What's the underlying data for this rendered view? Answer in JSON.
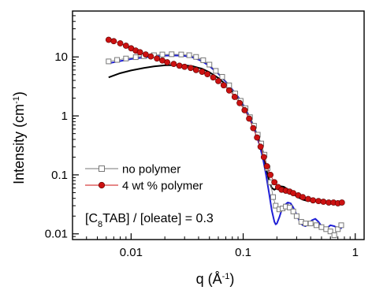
{
  "chart_data": {
    "type": "scatter",
    "x_scale": "log",
    "y_scale": "log",
    "xlim": [
      0.003,
      1.2
    ],
    "ylim": [
      0.008,
      60
    ],
    "x_ticks": [
      {
        "v": 0.01,
        "label": "0.01"
      },
      {
        "v": 0.1,
        "label": "0.1"
      },
      {
        "v": 1,
        "label": "1"
      }
    ],
    "y_ticks": [
      {
        "v": 0.01,
        "label": "0.01"
      },
      {
        "v": 0.1,
        "label": "0.1"
      },
      {
        "v": 1,
        "label": "1"
      },
      {
        "v": 10,
        "label": "10"
      }
    ],
    "xlabel": {
      "main": "q (Å",
      "sup": "-1",
      "end": ")"
    },
    "ylabel": {
      "main": "Intensity (cm",
      "sup": "-1",
      "end": ")"
    },
    "annotation": {
      "pre": "[C",
      "sub": "8",
      "post": "TAB] / [oleate] = 0.3"
    },
    "legend_position": "lower-left",
    "series": [
      {
        "name": "no polymer",
        "color": "#777777",
        "marker": "open-square",
        "points": [
          [
            0.0063,
            8.4
          ],
          [
            0.0075,
            8.9
          ],
          [
            0.009,
            9.4
          ],
          [
            0.011,
            9.9
          ],
          [
            0.013,
            10.3
          ],
          [
            0.016,
            10.7
          ],
          [
            0.019,
            11.0
          ],
          [
            0.023,
            11.1
          ],
          [
            0.028,
            11.0
          ],
          [
            0.033,
            10.7
          ],
          [
            0.038,
            10.0
          ],
          [
            0.044,
            8.8
          ],
          [
            0.05,
            7.4
          ],
          [
            0.057,
            5.8
          ],
          [
            0.065,
            4.6
          ],
          [
            0.075,
            3.3
          ],
          [
            0.085,
            2.4
          ],
          [
            0.095,
            1.8
          ],
          [
            0.105,
            1.35
          ],
          [
            0.115,
            0.95
          ],
          [
            0.125,
            0.68
          ],
          [
            0.135,
            0.48
          ],
          [
            0.145,
            0.34
          ],
          [
            0.155,
            0.22
          ],
          [
            0.165,
            0.13
          ],
          [
            0.175,
            0.075
          ],
          [
            0.185,
            0.042
          ],
          [
            0.195,
            0.03
          ],
          [
            0.21,
            0.026
          ],
          [
            0.225,
            0.027
          ],
          [
            0.24,
            0.029
          ],
          [
            0.26,
            0.028
          ],
          [
            0.28,
            0.024
          ],
          [
            0.3,
            0.02
          ],
          [
            0.33,
            0.016
          ],
          [
            0.36,
            0.015
          ],
          [
            0.4,
            0.015
          ],
          [
            0.45,
            0.014
          ],
          [
            0.5,
            0.013
          ],
          [
            0.55,
            0.012
          ],
          [
            0.6,
            0.011
          ],
          [
            0.65,
            0.0095
          ],
          [
            0.7,
            0.012
          ],
          [
            0.75,
            0.014
          ]
        ]
      },
      {
        "name": "4 wt % polymer",
        "color": "#cc1111",
        "marker": "filled-circle",
        "points": [
          [
            0.0063,
            19.5
          ],
          [
            0.007,
            18.5
          ],
          [
            0.008,
            17.0
          ],
          [
            0.009,
            15.5
          ],
          [
            0.01,
            14.0
          ],
          [
            0.011,
            12.8
          ],
          [
            0.012,
            12.0
          ],
          [
            0.0135,
            11.0
          ],
          [
            0.015,
            10.2
          ],
          [
            0.017,
            9.4
          ],
          [
            0.019,
            8.7
          ],
          [
            0.021,
            8.1
          ],
          [
            0.024,
            7.6
          ],
          [
            0.027,
            7.1
          ],
          [
            0.03,
            6.8
          ],
          [
            0.034,
            6.5
          ],
          [
            0.038,
            6.0
          ],
          [
            0.043,
            5.6
          ],
          [
            0.048,
            5.1
          ],
          [
            0.054,
            4.5
          ],
          [
            0.06,
            3.9
          ],
          [
            0.067,
            3.3
          ],
          [
            0.075,
            2.7
          ],
          [
            0.084,
            2.1
          ],
          [
            0.093,
            1.65
          ],
          [
            0.103,
            1.25
          ],
          [
            0.113,
            0.9
          ],
          [
            0.123,
            0.62
          ],
          [
            0.133,
            0.43
          ],
          [
            0.143,
            0.3
          ],
          [
            0.153,
            0.2
          ],
          [
            0.163,
            0.14
          ],
          [
            0.175,
            0.1
          ],
          [
            0.19,
            0.075
          ],
          [
            0.205,
            0.062
          ],
          [
            0.22,
            0.056
          ],
          [
            0.24,
            0.054
          ],
          [
            0.26,
            0.052
          ],
          [
            0.28,
            0.049
          ],
          [
            0.31,
            0.045
          ],
          [
            0.34,
            0.042
          ],
          [
            0.38,
            0.039
          ],
          [
            0.42,
            0.037
          ],
          [
            0.47,
            0.036
          ],
          [
            0.52,
            0.035
          ],
          [
            0.58,
            0.034
          ],
          [
            0.64,
            0.034
          ],
          [
            0.7,
            0.033
          ],
          [
            0.76,
            0.034
          ]
        ]
      }
    ],
    "fit_curves": [
      {
        "color": "#000000",
        "points": [
          [
            0.0063,
            4.5
          ],
          [
            0.008,
            5.3
          ],
          [
            0.01,
            5.9
          ],
          [
            0.013,
            6.5
          ],
          [
            0.016,
            6.9
          ],
          [
            0.02,
            7.2
          ],
          [
            0.025,
            7.3
          ],
          [
            0.03,
            7.2
          ],
          [
            0.036,
            6.9
          ],
          [
            0.043,
            6.3
          ],
          [
            0.05,
            5.5
          ],
          [
            0.06,
            4.4
          ],
          [
            0.07,
            3.4
          ],
          [
            0.08,
            2.6
          ],
          [
            0.09,
            2.0
          ],
          [
            0.1,
            1.5
          ],
          [
            0.11,
            1.1
          ],
          [
            0.12,
            0.78
          ],
          [
            0.13,
            0.53
          ],
          [
            0.14,
            0.35
          ],
          [
            0.15,
            0.22
          ],
          [
            0.16,
            0.13
          ],
          [
            0.17,
            0.08
          ],
          [
            0.18,
            0.06
          ],
          [
            0.19,
            0.056
          ],
          [
            0.2,
            0.06
          ],
          [
            0.215,
            0.064
          ],
          [
            0.23,
            0.063
          ],
          [
            0.25,
            0.057
          ],
          [
            0.27,
            0.05
          ],
          [
            0.3,
            0.043
          ],
          [
            0.34,
            0.038
          ],
          [
            0.38,
            0.036
          ],
          [
            0.42,
            0.037
          ],
          [
            0.46,
            0.037
          ],
          [
            0.5,
            0.036
          ],
          [
            0.55,
            0.034
          ],
          [
            0.6,
            0.033
          ],
          [
            0.65,
            0.032
          ],
          [
            0.7,
            0.032
          ],
          [
            0.76,
            0.032
          ]
        ]
      },
      {
        "color": "#1f1fd6",
        "points": [
          [
            0.0063,
            7.8
          ],
          [
            0.008,
            8.5
          ],
          [
            0.01,
            9.2
          ],
          [
            0.013,
            9.8
          ],
          [
            0.016,
            10.2
          ],
          [
            0.02,
            10.5
          ],
          [
            0.025,
            10.6
          ],
          [
            0.03,
            10.4
          ],
          [
            0.035,
            9.9
          ],
          [
            0.04,
            9.0
          ],
          [
            0.045,
            8.0
          ],
          [
            0.05,
            7.0
          ],
          [
            0.06,
            5.2
          ],
          [
            0.07,
            3.8
          ],
          [
            0.08,
            2.8
          ],
          [
            0.09,
            2.1
          ],
          [
            0.1,
            1.55
          ],
          [
            0.11,
            1.1
          ],
          [
            0.12,
            0.75
          ],
          [
            0.13,
            0.5
          ],
          [
            0.14,
            0.32
          ],
          [
            0.15,
            0.19
          ],
          [
            0.16,
            0.1
          ],
          [
            0.17,
            0.05
          ],
          [
            0.18,
            0.025
          ],
          [
            0.19,
            0.016
          ],
          [
            0.195,
            0.0145
          ],
          [
            0.2,
            0.015
          ],
          [
            0.21,
            0.019
          ],
          [
            0.22,
            0.025
          ],
          [
            0.235,
            0.031
          ],
          [
            0.25,
            0.034
          ],
          [
            0.265,
            0.033
          ],
          [
            0.28,
            0.028
          ],
          [
            0.3,
            0.021
          ],
          [
            0.32,
            0.016
          ],
          [
            0.34,
            0.014
          ],
          [
            0.36,
            0.0135
          ],
          [
            0.38,
            0.0145
          ],
          [
            0.41,
            0.017
          ],
          [
            0.44,
            0.018
          ],
          [
            0.47,
            0.016
          ],
          [
            0.5,
            0.0135
          ],
          [
            0.53,
            0.012
          ],
          [
            0.56,
            0.0125
          ],
          [
            0.6,
            0.014
          ],
          [
            0.65,
            0.0135
          ],
          [
            0.7,
            0.0125
          ],
          [
            0.76,
            0.0125
          ]
        ]
      }
    ]
  }
}
